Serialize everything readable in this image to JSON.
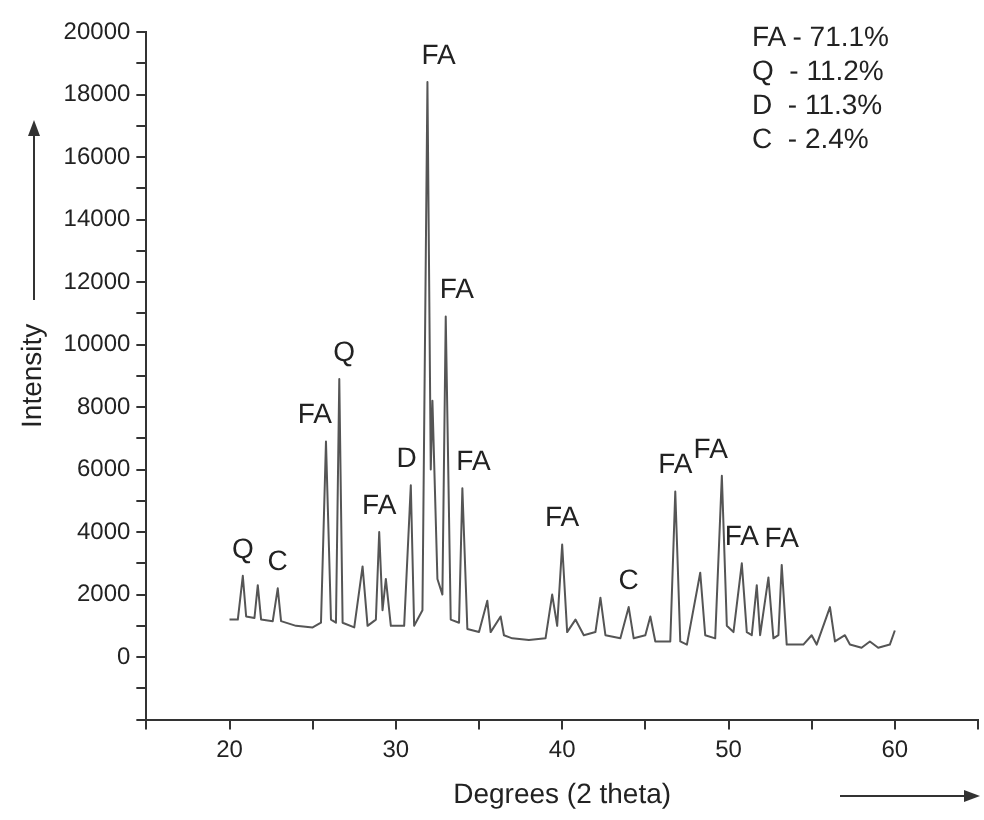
{
  "chart_data": {
    "type": "line",
    "xlabel": "Degrees (2 theta)",
    "ylabel": "Intensity",
    "xlim": [
      15,
      65
    ],
    "xticks": [
      {
        "value": 15,
        "label": null
      },
      20,
      {
        "value": 25,
        "label": null
      },
      30,
      {
        "value": 35,
        "label": null
      },
      40,
      {
        "value": 45,
        "label": null
      },
      50,
      {
        "value": 55,
        "label": null
      },
      60,
      {
        "value": 65,
        "label": null
      }
    ],
    "ylim": [
      -2000,
      20000
    ],
    "yticks": [
      {
        "value": -2000,
        "label": null
      },
      {
        "value": -1000,
        "label": null
      },
      0,
      {
        "value": 1000,
        "label": null
      },
      2000,
      {
        "value": 3000,
        "label": null
      },
      4000,
      {
        "value": 5000,
        "label": null
      },
      6000,
      {
        "value": 7000,
        "label": null
      },
      8000,
      {
        "value": 9000,
        "label": null
      },
      10000,
      {
        "value": 11000,
        "label": null
      },
      12000,
      {
        "value": 13000,
        "label": null
      },
      14000,
      {
        "value": 15000,
        "label": null
      },
      16000,
      {
        "value": 17000,
        "label": null
      },
      18000,
      {
        "value": 19000,
        "label": null
      },
      20000
    ],
    "grid": false,
    "legend": false,
    "marker": "none",
    "line_style": "solid",
    "series": [
      {
        "color": "#555555",
        "x": [
          20.0,
          20.5,
          20.8,
          21.0,
          21.5,
          21.7,
          21.9,
          22.6,
          22.9,
          23.1,
          24,
          25,
          25.5,
          25.8,
          26.1,
          26.4,
          26.6,
          26.8,
          27.5,
          28.0,
          28.3,
          28.8,
          29.0,
          29.2,
          29.4,
          29.7,
          30.5,
          30.9,
          31.1,
          31.6,
          31.9,
          32.1,
          32.2,
          32.5,
          32.8,
          33.0,
          33.3,
          33.8,
          34.0,
          34.3,
          35.0,
          35.5,
          35.7,
          36.3,
          36.5,
          37,
          38,
          39,
          39.4,
          39.7,
          40.0,
          40.3,
          40.8,
          41.3,
          42.0,
          42.3,
          42.6,
          43.5,
          44.0,
          44.3,
          45,
          45.3,
          45.6,
          46.5,
          46.8,
          47.1,
          47.5,
          48.3,
          48.6,
          49.2,
          49.6,
          49.9,
          50.3,
          50.8,
          51.1,
          51.4,
          51.7,
          51.9,
          52.4,
          52.7,
          53.0,
          53.2,
          53.5,
          54.5,
          55.0,
          55.3,
          56.1,
          56.4,
          57,
          57.3,
          58,
          58.5,
          59,
          59.7,
          60.0
        ],
        "values": [
          1200,
          1200,
          2600,
          1300,
          1250,
          2300,
          1200,
          1150,
          2200,
          1150,
          1000,
          950,
          1100,
          6900,
          1200,
          1100,
          8900,
          1100,
          950,
          2900,
          1000,
          1200,
          4000,
          1500,
          2500,
          1000,
          1000,
          5500,
          1000,
          1500,
          18400,
          6000,
          8200,
          2500,
          2000,
          10900,
          1200,
          1100,
          5400,
          900,
          800,
          1800,
          800,
          1300,
          700,
          600,
          550,
          600,
          2000,
          1000,
          3600,
          800,
          1200,
          700,
          800,
          1900,
          700,
          600,
          1600,
          600,
          700,
          1300,
          500,
          500,
          5300,
          500,
          400,
          2700,
          700,
          600,
          5800,
          1000,
          800,
          3000,
          800,
          700,
          2300,
          700,
          2550,
          600,
          700,
          2950,
          400,
          400,
          700,
          400,
          1600,
          500,
          700,
          400,
          300,
          500,
          300,
          400,
          850
        ]
      }
    ],
    "annotations": [
      {
        "text": "Q",
        "x": 20.8,
        "y": 2600
      },
      {
        "text": "C",
        "x": 22.9,
        "y": 2200
      },
      {
        "text": "FA",
        "x": 25.8,
        "y": 6900
      },
      {
        "text": "Q",
        "x": 26.6,
        "y": 8900
      },
      {
        "text": "FA",
        "x": 29.0,
        "y": 4000
      },
      {
        "text": "D",
        "x": 30.9,
        "y": 5500
      },
      {
        "text": "FA",
        "x": 31.9,
        "y": 18400
      },
      {
        "text": "FA",
        "x": 33.0,
        "y": 10900
      },
      {
        "text": "FA",
        "x": 34.0,
        "y": 5400
      },
      {
        "text": "FA",
        "x": 40.0,
        "y": 3600
      },
      {
        "text": "C",
        "x": 44.0,
        "y": 1600
      },
      {
        "text": "FA",
        "x": 46.8,
        "y": 5300
      },
      {
        "text": "FA",
        "x": 49.6,
        "y": 5800
      },
      {
        "text": "FA",
        "x": 50.8,
        "y": 3000
      },
      {
        "text": "FA",
        "x": 53.2,
        "y": 2950
      },
      "FA - 71.1%",
      "Q  - 11.2%",
      "D  - 11.3%",
      "C  - 2.4%"
    ]
  }
}
